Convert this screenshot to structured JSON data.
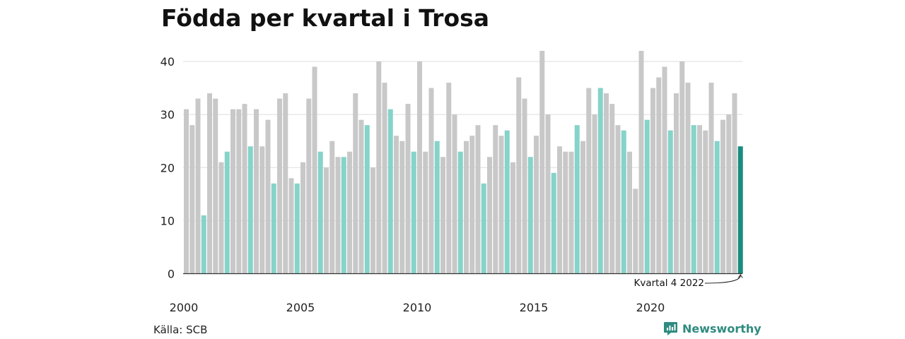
{
  "header": {
    "title": "Födda per kvartal i Trosa"
  },
  "footer": {
    "source": "Källa: SCB",
    "brand": "Newsworthy"
  },
  "chart_data": {
    "type": "bar",
    "title": "Födda per kvartal i Trosa",
    "xlabel": "",
    "ylabel": "",
    "ylim": [
      0,
      42
    ],
    "yticks": [
      0,
      10,
      20,
      30,
      40
    ],
    "xtick_labels": [
      "2000",
      "2005",
      "2010",
      "2015",
      "2020"
    ],
    "start_year": 2000,
    "values": [
      31,
      28,
      33,
      11,
      34,
      33,
      21,
      23,
      31,
      31,
      32,
      24,
      31,
      24,
      29,
      17,
      33,
      34,
      18,
      17,
      21,
      33,
      39,
      23,
      20,
      25,
      22,
      22,
      23,
      34,
      29,
      28,
      20,
      40,
      36,
      31,
      26,
      25,
      32,
      23,
      40,
      23,
      35,
      25,
      22,
      36,
      30,
      23,
      25,
      26,
      28,
      17,
      22,
      28,
      26,
      27,
      21,
      37,
      33,
      22,
      26,
      42,
      30,
      19,
      24,
      23,
      23,
      28,
      25,
      35,
      30,
      35,
      34,
      32,
      28,
      27,
      23,
      16,
      42,
      29,
      35,
      37,
      39,
      27,
      34,
      40,
      36,
      28,
      28,
      27,
      36,
      25,
      29,
      30,
      34,
      24
    ],
    "highlight_quarter": 4,
    "colors": {
      "default": "#c8c8c8",
      "quarter4": "#86d3c9",
      "latest": "#1a8c80",
      "gridline": "#dedede",
      "axis": "#333333"
    },
    "annotation": {
      "text": "Kvartal 4 2022"
    },
    "grid": true
  }
}
